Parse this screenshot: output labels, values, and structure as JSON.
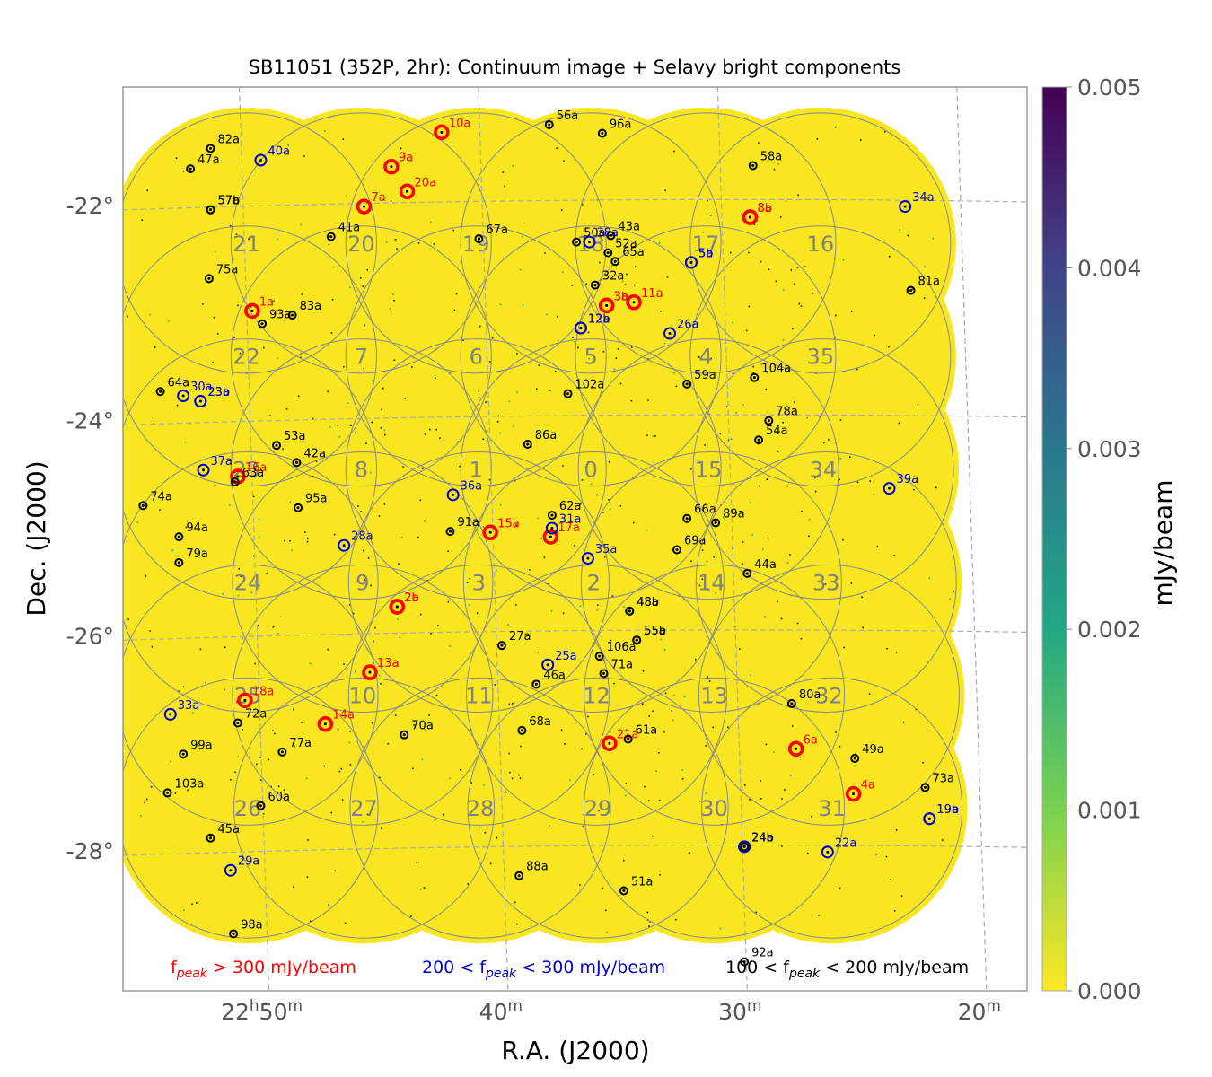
{
  "chart_data": {
    "type": "scatter",
    "title": "SB11051 (352P, 2hr): Continuum image + Selavy bright components",
    "xlabel": "R.A. (J2000)",
    "ylabel": "Dec. (J2000)",
    "xlim": [
      22.93,
      22.3
    ],
    "ylim": [
      -29.3,
      -20.9
    ],
    "x_unit": "hours",
    "y_unit": "degrees",
    "x_ticks": [
      {
        "value": 22.8333,
        "label_main": "22",
        "label_sup1": "h",
        "label_mid": "50",
        "label_sup2": "m"
      },
      {
        "value": 22.6667,
        "label_main": "40",
        "label_sup1": "m",
        "label_mid": "",
        "label_sup2": ""
      },
      {
        "value": 22.5,
        "label_main": "30",
        "label_sup1": "m",
        "label_mid": "",
        "label_sup2": ""
      },
      {
        "value": 22.3333,
        "label_main": "20",
        "label_sup1": "m",
        "label_mid": "",
        "label_sup2": ""
      }
    ],
    "y_ticks": [
      {
        "value": -22,
        "label": "-22°"
      },
      {
        "value": -24,
        "label": "-24°"
      },
      {
        "value": -26,
        "label": "-26°"
      },
      {
        "value": -28,
        "label": "-28°"
      }
    ],
    "grid": true,
    "colorbar": {
      "label": "mJy/beam",
      "range": [
        0.0,
        0.005
      ],
      "ticks": [
        "0.000",
        "0.001",
        "0.002",
        "0.003",
        "0.004",
        "0.005"
      ],
      "colormap": "viridis_r"
    },
    "image_fill_color": "#f8e621",
    "beams": [
      {
        "label": "0",
        "x": 22.604,
        "y": -24.45
      },
      {
        "label": "1",
        "x": 22.684,
        "y": -24.45
      },
      {
        "label": "2",
        "x": 22.602,
        "y": -25.5
      },
      {
        "label": "3",
        "x": 22.682,
        "y": -25.5
      },
      {
        "label": "4",
        "x": 22.524,
        "y": -23.4
      },
      {
        "label": "5",
        "x": 22.604,
        "y": -23.4
      },
      {
        "label": "6",
        "x": 22.684,
        "y": -23.4
      },
      {
        "label": "7",
        "x": 22.764,
        "y": -23.4
      },
      {
        "label": "8",
        "x": 22.764,
        "y": -24.45
      },
      {
        "label": "9",
        "x": 22.763,
        "y": -25.5
      },
      {
        "label": "10",
        "x": 22.763,
        "y": -26.55
      },
      {
        "label": "11",
        "x": 22.682,
        "y": -26.55
      },
      {
        "label": "12",
        "x": 22.6,
        "y": -26.55
      },
      {
        "label": "13",
        "x": 22.518,
        "y": -26.55
      },
      {
        "label": "14",
        "x": 22.52,
        "y": -25.5
      },
      {
        "label": "15",
        "x": 22.522,
        "y": -24.45
      },
      {
        "label": "16",
        "x": 22.444,
        "y": -22.35
      },
      {
        "label": "17",
        "x": 22.524,
        "y": -22.35
      },
      {
        "label": "18",
        "x": 22.604,
        "y": -22.35
      },
      {
        "label": "19",
        "x": 22.684,
        "y": -22.35
      },
      {
        "label": "20",
        "x": 22.764,
        "y": -22.35
      },
      {
        "label": "21",
        "x": 22.844,
        "y": -22.35
      },
      {
        "label": "22",
        "x": 22.844,
        "y": -23.4
      },
      {
        "label": "23",
        "x": 22.844,
        "y": -24.45
      },
      {
        "label": "24",
        "x": 22.843,
        "y": -25.5
      },
      {
        "label": "25",
        "x": 22.843,
        "y": -26.55
      },
      {
        "label": "26",
        "x": 22.843,
        "y": -27.6
      },
      {
        "label": "27",
        "x": 22.762,
        "y": -27.6
      },
      {
        "label": "28",
        "x": 22.681,
        "y": -27.6
      },
      {
        "label": "29",
        "x": 22.599,
        "y": -27.6
      },
      {
        "label": "30",
        "x": 22.518,
        "y": -27.6
      },
      {
        "label": "31",
        "x": 22.436,
        "y": -27.6
      },
      {
        "label": "32",
        "x": 22.438,
        "y": -26.55
      },
      {
        "label": "33",
        "x": 22.44,
        "y": -25.5
      },
      {
        "label": "34",
        "x": 22.442,
        "y": -24.45
      },
      {
        "label": "35",
        "x": 22.444,
        "y": -23.4
      }
    ],
    "series": [
      {
        "name": "f_peak > 300 mJy/beam",
        "color": "#ff0000",
        "points": [
          {
            "label": "1a",
            "x": 22.84,
            "y": -22.98
          },
          {
            "label": "2a",
            "x": 22.739,
            "y": -25.73
          },
          {
            "label": "2b",
            "x": 22.739,
            "y": -25.73
          },
          {
            "label": "3a",
            "x": 22.593,
            "y": -22.93
          },
          {
            "label": "3b",
            "x": 22.593,
            "y": -22.93
          },
          {
            "label": "4a",
            "x": 22.421,
            "y": -27.47
          },
          {
            "label": "6a",
            "x": 22.461,
            "y": -27.05
          },
          {
            "label": "7a",
            "x": 22.762,
            "y": -22.01
          },
          {
            "label": "8a",
            "x": 22.493,
            "y": -22.11
          },
          {
            "label": "8b",
            "x": 22.493,
            "y": -22.11
          },
          {
            "label": "9a",
            "x": 22.743,
            "y": -21.64
          },
          {
            "label": "10a",
            "x": 22.708,
            "y": -21.32
          },
          {
            "label": "11a",
            "x": 22.574,
            "y": -22.9
          },
          {
            "label": "13a",
            "x": 22.758,
            "y": -26.34
          },
          {
            "label": "14a",
            "x": 22.789,
            "y": -26.82
          },
          {
            "label": "15a",
            "x": 22.674,
            "y": -25.04
          },
          {
            "label": "16a",
            "x": 22.85,
            "y": -24.52
          },
          {
            "label": "17a",
            "x": 22.632,
            "y": -25.08
          },
          {
            "label": "18a",
            "x": 22.845,
            "y": -26.6
          },
          {
            "label": "20a",
            "x": 22.732,
            "y": -21.87
          },
          {
            "label": "21a",
            "x": 22.591,
            "y": -27.0
          }
        ]
      },
      {
        "name": "200 < f_peak < 300 mJy/beam",
        "color": "#0000cc",
        "points": [
          {
            "label": "5a",
            "x": 22.534,
            "y": -22.53
          },
          {
            "label": "5b",
            "x": 22.534,
            "y": -22.53
          },
          {
            "label": "12a",
            "x": 22.611,
            "y": -23.14
          },
          {
            "label": "12b",
            "x": 22.611,
            "y": -23.14
          },
          {
            "label": "19a",
            "x": 22.368,
            "y": -27.7
          },
          {
            "label": "19b",
            "x": 22.368,
            "y": -27.7
          },
          {
            "label": "22a",
            "x": 22.439,
            "y": -28.01
          },
          {
            "label": "23a",
            "x": 22.876,
            "y": -23.82
          },
          {
            "label": "23b",
            "x": 22.876,
            "y": -23.82
          },
          {
            "label": "24a",
            "x": 22.497,
            "y": -27.96
          },
          {
            "label": "24b",
            "x": 22.497,
            "y": -27.96
          },
          {
            "label": "25a",
            "x": 22.634,
            "y": -26.27
          },
          {
            "label": "26a",
            "x": 22.549,
            "y": -23.19
          },
          {
            "label": "28a",
            "x": 22.776,
            "y": -25.16
          },
          {
            "label": "29a",
            "x": 22.855,
            "y": -28.18
          },
          {
            "label": "30a",
            "x": 22.888,
            "y": -23.77
          },
          {
            "label": "31a",
            "x": 22.631,
            "y": -25.0
          },
          {
            "label": "33a",
            "x": 22.897,
            "y": -26.73
          },
          {
            "label": "34a",
            "x": 22.385,
            "y": -22.01
          },
          {
            "label": "35a",
            "x": 22.606,
            "y": -25.28
          },
          {
            "label": "36a",
            "x": 22.7,
            "y": -24.69
          },
          {
            "label": "37a",
            "x": 22.874,
            "y": -24.46
          },
          {
            "label": "38a",
            "x": 22.605,
            "y": -22.34
          },
          {
            "label": "39a",
            "x": 22.396,
            "y": -24.63
          },
          {
            "label": "40a",
            "x": 22.834,
            "y": -21.58
          }
        ]
      },
      {
        "name": "100 < f_peak < 200 mJy/beam",
        "color": "#000000",
        "points": [
          {
            "label": "24b",
            "x": 22.497,
            "y": -27.96
          },
          {
            "label": "27a",
            "x": 22.666,
            "y": -26.09
          },
          {
            "label": "32a",
            "x": 22.601,
            "y": -22.74
          },
          {
            "label": "41a",
            "x": 22.785,
            "y": -22.29
          },
          {
            "label": "42a",
            "x": 22.809,
            "y": -24.39
          },
          {
            "label": "43a",
            "x": 22.59,
            "y": -22.28
          },
          {
            "label": "44a",
            "x": 22.495,
            "y": -25.42
          },
          {
            "label": "45a",
            "x": 22.869,
            "y": -27.88
          },
          {
            "label": "46a",
            "x": 22.642,
            "y": -26.45
          },
          {
            "label": "47a",
            "x": 22.883,
            "y": -21.66
          },
          {
            "label": "48a",
            "x": 22.577,
            "y": -25.77
          },
          {
            "label": "48b",
            "x": 22.577,
            "y": -25.77
          },
          {
            "label": "49a",
            "x": 22.42,
            "y": -27.14
          },
          {
            "label": "50a",
            "x": 22.614,
            "y": -22.34
          },
          {
            "label": "51a",
            "x": 22.581,
            "y": -28.37
          },
          {
            "label": "52a",
            "x": 22.592,
            "y": -22.44
          },
          {
            "label": "53a",
            "x": 22.823,
            "y": -24.23
          },
          {
            "label": "54a",
            "x": 22.487,
            "y": -24.18
          },
          {
            "label": "55a",
            "x": 22.572,
            "y": -26.04
          },
          {
            "label": "55b",
            "x": 22.572,
            "y": -26.04
          },
          {
            "label": "56a",
            "x": 22.633,
            "y": -21.25
          },
          {
            "label": "57a",
            "x": 22.869,
            "y": -22.04
          },
          {
            "label": "57b",
            "x": 22.869,
            "y": -22.04
          },
          {
            "label": "58a",
            "x": 22.491,
            "y": -21.63
          },
          {
            "label": "59a",
            "x": 22.537,
            "y": -23.66
          },
          {
            "label": "60a",
            "x": 22.834,
            "y": -27.58
          },
          {
            "label": "61a",
            "x": 22.578,
            "y": -26.96
          },
          {
            "label": "62a",
            "x": 22.631,
            "y": -24.88
          },
          {
            "label": "63a",
            "x": 22.852,
            "y": -24.57
          },
          {
            "label": "64a",
            "x": 22.904,
            "y": -23.73
          },
          {
            "label": "65a",
            "x": 22.587,
            "y": -22.52
          },
          {
            "label": "66a",
            "x": 22.537,
            "y": -24.91
          },
          {
            "label": "67a",
            "x": 22.682,
            "y": -22.31
          },
          {
            "label": "68a",
            "x": 22.652,
            "y": -26.88
          },
          {
            "label": "69a",
            "x": 22.544,
            "y": -25.2
          },
          {
            "label": "70a",
            "x": 22.734,
            "y": -26.92
          },
          {
            "label": "71a",
            "x": 22.595,
            "y": -26.35
          },
          {
            "label": "72a",
            "x": 22.85,
            "y": -26.81
          },
          {
            "label": "73a",
            "x": 22.371,
            "y": -27.41
          },
          {
            "label": "74a",
            "x": 22.916,
            "y": -24.79
          },
          {
            "label": "75a",
            "x": 22.87,
            "y": -22.68
          },
          {
            "label": "77a",
            "x": 22.819,
            "y": -27.08
          },
          {
            "label": "78a",
            "x": 22.48,
            "y": -24.0
          },
          {
            "label": "79a",
            "x": 22.891,
            "y": -25.32
          },
          {
            "label": "80a",
            "x": 22.464,
            "y": -26.63
          },
          {
            "label": "81a",
            "x": 22.381,
            "y": -22.79
          },
          {
            "label": "82a",
            "x": 22.869,
            "y": -21.47
          },
          {
            "label": "83a",
            "x": 22.812,
            "y": -23.02
          },
          {
            "label": "86a",
            "x": 22.648,
            "y": -24.22
          },
          {
            "label": "88a",
            "x": 22.654,
            "y": -28.23
          },
          {
            "label": "89a",
            "x": 22.517,
            "y": -24.95
          },
          {
            "label": "91a",
            "x": 22.702,
            "y": -25.03
          },
          {
            "label": "92a",
            "x": 22.497,
            "y": -29.03
          },
          {
            "label": "93a",
            "x": 22.833,
            "y": -23.1
          },
          {
            "label": "94a",
            "x": 22.891,
            "y": -25.08
          },
          {
            "label": "95a",
            "x": 22.808,
            "y": -24.81
          },
          {
            "label": "96a",
            "x": 22.596,
            "y": -21.33
          },
          {
            "label": "98a",
            "x": 22.853,
            "y": -28.77
          },
          {
            "label": "99a",
            "x": 22.888,
            "y": -27.1
          },
          {
            "label": "102a",
            "x": 22.62,
            "y": -23.75
          },
          {
            "label": "103a",
            "x": 22.899,
            "y": -27.46
          },
          {
            "label": "104a",
            "x": 22.49,
            "y": -23.6
          },
          {
            "label": "106a",
            "x": 22.598,
            "y": -26.19
          }
        ]
      }
    ],
    "legend": [
      {
        "pre": "f",
        "sub": "peak",
        "post": " > 300 mJy/beam",
        "color": "#ff0000"
      },
      {
        "pre": "200 < f",
        "sub": "peak",
        "post": " < 300 mJy/beam",
        "color": "#0000cc"
      },
      {
        "pre": "100 < f",
        "sub": "peak",
        "post": " < 200 mJy/beam",
        "color": "#000000"
      }
    ]
  }
}
